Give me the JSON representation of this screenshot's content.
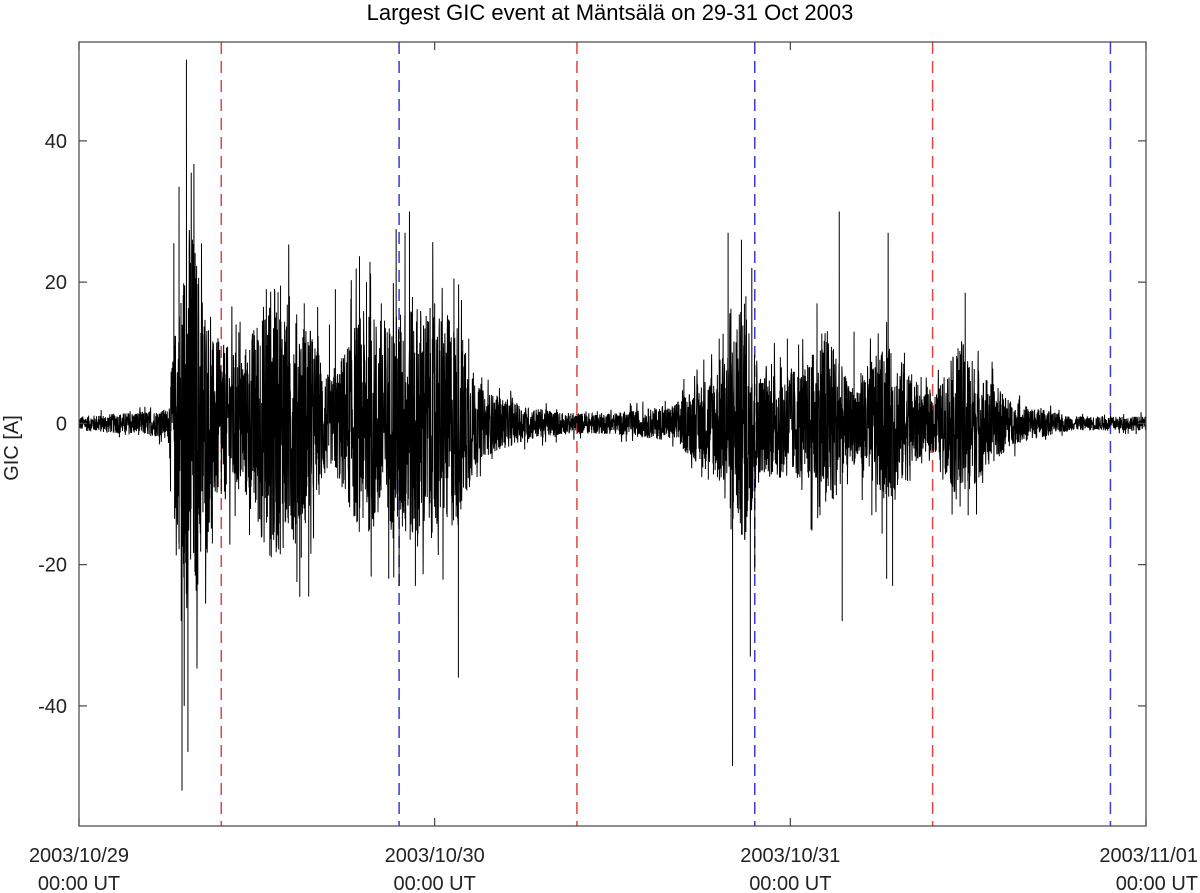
{
  "chart_data": {
    "type": "line",
    "title": "Largest GIC event at Mäntsälä on 29-31 Oct 2003",
    "xlabel": "",
    "ylabel": "GIC [A]",
    "x_unit": "hours since 2003/10/29 00:00 UT",
    "xlim": [
      0,
      72
    ],
    "ylim": [
      -57,
      54
    ],
    "grid": false,
    "x_ticks": [
      {
        "value": 0,
        "line1": "2003/10/29",
        "line2": "00:00 UT"
      },
      {
        "value": 24,
        "line1": "2003/10/30",
        "line2": "00:00 UT"
      },
      {
        "value": 48,
        "line1": "2003/10/31",
        "line2": "00:00 UT"
      },
      {
        "value": 72,
        "line1": "2003/11/01",
        "line2": "00:00 UT"
      }
    ],
    "y_ticks": [
      {
        "value": -40,
        "label": "-40"
      },
      {
        "value": -20,
        "label": "-20"
      },
      {
        "value": 0,
        "label": "0"
      },
      {
        "value": 20,
        "label": "20"
      },
      {
        "value": 40,
        "label": "40"
      }
    ],
    "reference_lines": [
      {
        "x": 9.6,
        "color": "#e0463f"
      },
      {
        "x": 21.6,
        "color": "#3a3ad0"
      },
      {
        "x": 33.6,
        "color": "#e0463f"
      },
      {
        "x": 45.6,
        "color": "#3a3ad0"
      },
      {
        "x": 57.6,
        "color": "#e0463f"
      },
      {
        "x": 69.6,
        "color": "#3a3ad0"
      }
    ],
    "series": [
      {
        "color": "#000000",
        "envelope": [
          [
            0,
            1
          ],
          [
            6,
            2
          ],
          [
            6.5,
            14
          ],
          [
            7.5,
            30
          ],
          [
            9,
            12
          ],
          [
            11,
            10
          ],
          [
            13,
            20
          ],
          [
            15.5,
            14
          ],
          [
            17,
            6
          ],
          [
            19,
            16
          ],
          [
            21,
            15
          ],
          [
            22.5,
            18
          ],
          [
            24,
            16
          ],
          [
            25.5,
            15
          ],
          [
            27,
            5
          ],
          [
            30,
            2.5
          ],
          [
            33,
            1.5
          ],
          [
            36,
            1.5
          ],
          [
            40,
            2.5
          ],
          [
            43,
            8
          ],
          [
            45,
            18
          ],
          [
            46,
            7
          ],
          [
            47,
            8
          ],
          [
            49,
            8
          ],
          [
            50.5,
            14
          ],
          [
            52,
            5
          ],
          [
            53,
            8
          ],
          [
            54.5,
            11
          ],
          [
            56,
            8
          ],
          [
            57,
            4
          ],
          [
            58,
            5
          ],
          [
            59.5,
            12
          ],
          [
            61,
            7
          ],
          [
            63,
            3
          ],
          [
            67,
            1
          ],
          [
            72,
            1
          ]
        ],
        "spikes": [
          [
            6.4,
            25.5
          ],
          [
            6.45,
            -13.5
          ],
          [
            6.75,
            33.5
          ],
          [
            6.9,
            -28
          ],
          [
            6.95,
            -52
          ],
          [
            7.1,
            -40
          ],
          [
            7.25,
            51.5
          ],
          [
            7.35,
            -46.5
          ],
          [
            7.8,
            20
          ],
          [
            9.0,
            -17
          ],
          [
            9.6,
            -10
          ],
          [
            10.6,
            14
          ],
          [
            13.6,
            19.5
          ],
          [
            14.2,
            18
          ],
          [
            14.6,
            -17
          ],
          [
            15.0,
            -19
          ],
          [
            15.2,
            17
          ],
          [
            15.5,
            -24.5
          ],
          [
            16.9,
            14
          ],
          [
            17.3,
            19
          ],
          [
            18.6,
            13.5
          ],
          [
            19.4,
            20
          ],
          [
            20.4,
            17
          ],
          [
            20.9,
            -22
          ],
          [
            21.4,
            27.5
          ],
          [
            21.6,
            -23
          ],
          [
            22.0,
            27
          ],
          [
            22.3,
            30
          ],
          [
            22.6,
            -13.5
          ],
          [
            22.7,
            -23
          ],
          [
            24.0,
            17
          ],
          [
            25.3,
            20.5
          ],
          [
            25.6,
            -36
          ],
          [
            26.3,
            12
          ],
          [
            43.2,
            12
          ],
          [
            43.8,
            27
          ],
          [
            44.0,
            -15
          ],
          [
            44.1,
            -48.5
          ],
          [
            44.7,
            26
          ],
          [
            45.0,
            18
          ],
          [
            45.3,
            -33
          ],
          [
            45.4,
            22
          ],
          [
            45.6,
            -21
          ],
          [
            47.8,
            12
          ],
          [
            49.4,
            -15
          ],
          [
            49.8,
            17
          ],
          [
            50.0,
            -13
          ],
          [
            51.3,
            30
          ],
          [
            51.5,
            -28
          ],
          [
            52.3,
            13
          ],
          [
            53.5,
            -13
          ],
          [
            54.5,
            -22
          ],
          [
            54.6,
            27
          ],
          [
            54.9,
            -23
          ],
          [
            55.7,
            10
          ],
          [
            59.8,
            18.5
          ],
          [
            60.0,
            -13
          ]
        ]
      }
    ]
  }
}
